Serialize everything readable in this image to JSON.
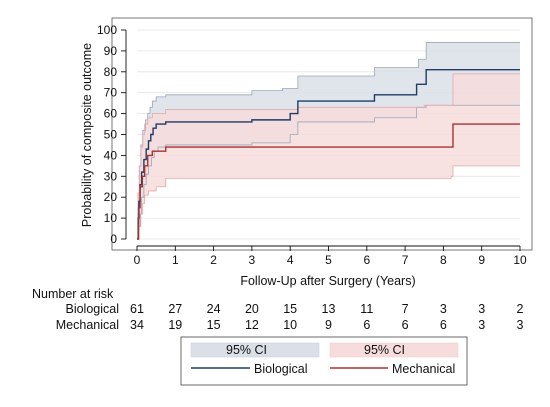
{
  "chart_data": {
    "type": "line",
    "xlabel": "Follow-Up after Surgery (Years)",
    "ylabel": "Probability of composite outcome",
    "xlim": [
      0,
      10
    ],
    "ylim": [
      0,
      100
    ],
    "x_ticks": [
      0,
      1,
      2,
      3,
      4,
      5,
      6,
      7,
      8,
      9,
      10
    ],
    "y_ticks": [
      0,
      10,
      20,
      30,
      40,
      50,
      60,
      70,
      80,
      90,
      100
    ],
    "grid": "horizontal",
    "series": [
      {
        "name": "Biological",
        "color": "#1f3b66",
        "ci_color": "#dbe0e8",
        "steps": [
          [
            0,
            0
          ],
          [
            0.03,
            10
          ],
          [
            0.05,
            18
          ],
          [
            0.08,
            26
          ],
          [
            0.12,
            32
          ],
          [
            0.18,
            38
          ],
          [
            0.24,
            43
          ],
          [
            0.3,
            47
          ],
          [
            0.36,
            50
          ],
          [
            0.42,
            53
          ],
          [
            0.5,
            55
          ],
          [
            0.75,
            56
          ],
          [
            3.0,
            57
          ],
          [
            4.0,
            60
          ],
          [
            4.2,
            66
          ],
          [
            6.2,
            69
          ],
          [
            7.3,
            74
          ],
          [
            7.55,
            81
          ],
          [
            10,
            81
          ]
        ],
        "ci_upper": [
          [
            0,
            0
          ],
          [
            0.03,
            22
          ],
          [
            0.06,
            35
          ],
          [
            0.1,
            45
          ],
          [
            0.15,
            52
          ],
          [
            0.22,
            57
          ],
          [
            0.28,
            60
          ],
          [
            0.34,
            63
          ],
          [
            0.4,
            66
          ],
          [
            0.5,
            68
          ],
          [
            0.75,
            69
          ],
          [
            3.0,
            71
          ],
          [
            3.8,
            72
          ],
          [
            4.2,
            78
          ],
          [
            6.2,
            82
          ],
          [
            7.35,
            86
          ],
          [
            7.55,
            94
          ],
          [
            10,
            94
          ]
        ],
        "ci_lower": [
          [
            0,
            0
          ],
          [
            0.05,
            6
          ],
          [
            0.08,
            12
          ],
          [
            0.12,
            20
          ],
          [
            0.18,
            26
          ],
          [
            0.24,
            31
          ],
          [
            0.3,
            35
          ],
          [
            0.38,
            39
          ],
          [
            0.45,
            42
          ],
          [
            0.55,
            44
          ],
          [
            0.75,
            45
          ],
          [
            3.0,
            46
          ],
          [
            4.0,
            50
          ],
          [
            4.2,
            56
          ],
          [
            6.2,
            58
          ],
          [
            7.3,
            63
          ],
          [
            7.55,
            64
          ],
          [
            10,
            64
          ]
        ]
      },
      {
        "name": "Mechanical",
        "color": "#a83232",
        "ci_color": "#f6dcdc",
        "steps": [
          [
            0,
            0
          ],
          [
            0.04,
            15
          ],
          [
            0.08,
            25
          ],
          [
            0.14,
            30
          ],
          [
            0.2,
            35
          ],
          [
            0.28,
            40
          ],
          [
            0.4,
            42
          ],
          [
            0.75,
            44
          ],
          [
            8.2,
            44
          ],
          [
            8.25,
            55
          ],
          [
            10,
            55
          ]
        ],
        "ci_upper": [
          [
            0,
            0
          ],
          [
            0.03,
            22
          ],
          [
            0.06,
            35
          ],
          [
            0.1,
            44
          ],
          [
            0.15,
            50
          ],
          [
            0.2,
            55
          ],
          [
            0.28,
            58
          ],
          [
            0.4,
            60
          ],
          [
            0.75,
            62
          ],
          [
            4.2,
            63
          ],
          [
            7.5,
            64
          ],
          [
            8.25,
            79
          ],
          [
            10,
            79
          ]
        ],
        "ci_lower": [
          [
            0,
            0
          ],
          [
            0.05,
            6
          ],
          [
            0.1,
            12
          ],
          [
            0.15,
            17
          ],
          [
            0.2,
            21
          ],
          [
            0.3,
            23
          ],
          [
            0.5,
            25
          ],
          [
            0.75,
            29
          ],
          [
            8.2,
            30
          ],
          [
            8.25,
            35
          ],
          [
            10,
            35
          ]
        ]
      }
    ],
    "risk_table": {
      "title": "Number at risk",
      "rows": [
        {
          "label": "Biological",
          "values": [
            61,
            27,
            24,
            20,
            15,
            13,
            11,
            7,
            3,
            3,
            2
          ]
        },
        {
          "label": "Mechanical",
          "values": [
            34,
            19,
            15,
            12,
            10,
            9,
            6,
            6,
            6,
            3,
            3
          ]
        }
      ]
    },
    "legend": {
      "placement": "bottom",
      "ci_label": "95% CI",
      "items": [
        "Biological",
        "Mechanical"
      ]
    }
  }
}
